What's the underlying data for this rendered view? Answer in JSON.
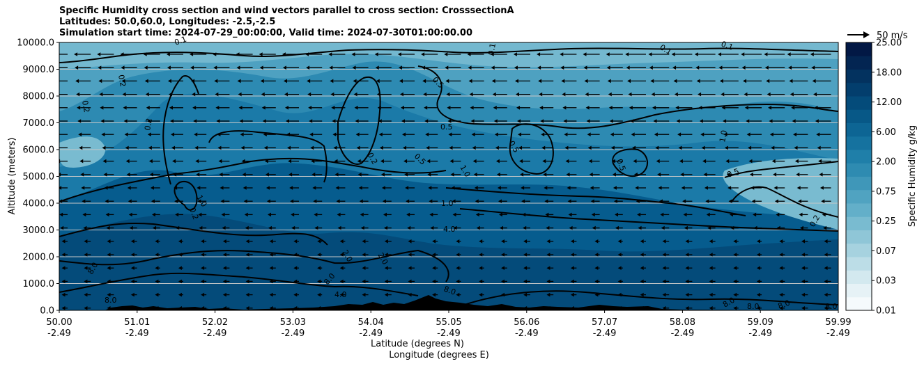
{
  "chart_data": {
    "type": "heatmap",
    "title_lines": [
      "Specific Humidity cross section and wind vectors parallel to cross section: CrosssectionA",
      "Latitudes: 50.0,60.0, Longitudes: -2.5,-2.5",
      "Simulation start time: 2024-07-29_00:00:00, Valid time: 2024-07-30T01:00:00.00"
    ],
    "xlabel_lines": [
      "Latitude (degrees N)",
      "Longitude (degrees E)"
    ],
    "ylabel": "Altitude (meters)",
    "x_ticks": [
      {
        "lat": "50.00",
        "lon": "-2.49"
      },
      {
        "lat": "51.01",
        "lon": "-2.49"
      },
      {
        "lat": "52.02",
        "lon": "-2.49"
      },
      {
        "lat": "53.03",
        "lon": "-2.49"
      },
      {
        "lat": "54.04",
        "lon": "-2.49"
      },
      {
        "lat": "55.05",
        "lon": "-2.49"
      },
      {
        "lat": "56.06",
        "lon": "-2.49"
      },
      {
        "lat": "57.07",
        "lon": "-2.49"
      },
      {
        "lat": "58.08",
        "lon": "-2.49"
      },
      {
        "lat": "59.09",
        "lon": "-2.49"
      },
      {
        "lat": "59.99",
        "lon": "-2.49"
      }
    ],
    "xlim": [
      50.0,
      59.99
    ],
    "ylim": [
      0,
      10000
    ],
    "y_ticks": [
      "0.0",
      "1000.0",
      "2000.0",
      "3000.0",
      "4000.0",
      "5000.0",
      "6000.0",
      "7000.0",
      "8000.0",
      "9000.0",
      "10000.0"
    ],
    "y_tick_values": [
      0,
      1000,
      2000,
      3000,
      4000,
      5000,
      6000,
      7000,
      8000,
      9000,
      10000
    ],
    "grid": "horizontal",
    "colorbar": {
      "label": "Specific Humidity g/kg",
      "tick_labels": [
        "0.01",
        "0.03",
        "0.07",
        "0.25",
        "0.75",
        "2.00",
        "6.00",
        "12.00",
        "18.00",
        "25.00"
      ],
      "colors": [
        "#f5fafc",
        "#e6f2f6",
        "#d3e9ef",
        "#bcdde7",
        "#a6d2df",
        "#8fc6d7",
        "#79bbd0",
        "#63afc9",
        "#50a3c1",
        "#3f97b9",
        "#2e8bb1",
        "#1f7fa9",
        "#15729f",
        "#0d6594",
        "#075887",
        "#044b7a",
        "#033e6d",
        "#03325f",
        "#032552",
        "#021845"
      ]
    },
    "wind_key": {
      "label": "50 m/s",
      "speed_ms": 50
    },
    "contour_labels": [
      "0.1",
      "0.2",
      "0.5",
      "1.0",
      "2.0",
      "4.0",
      "8.0"
    ],
    "colors": {
      "ax_background": "#0b5e8f",
      "terrain": "#000000",
      "contour": "#000000",
      "grid": "#c8c8c8"
    }
  }
}
